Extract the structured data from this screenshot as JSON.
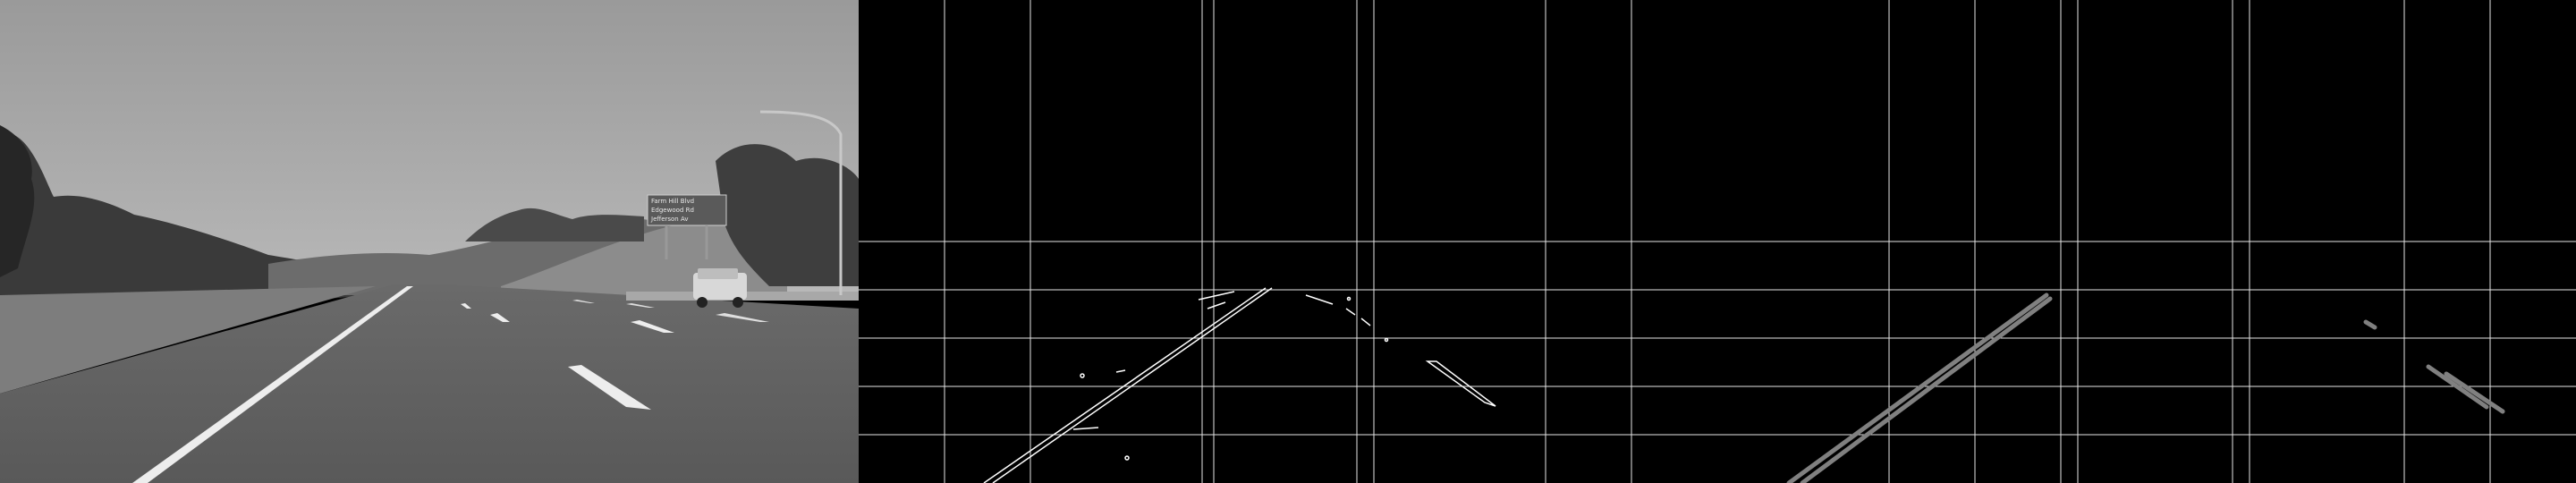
{
  "panels": [
    {
      "name": "grayscale-road-photo"
    },
    {
      "name": "canny-edge-image"
    },
    {
      "name": "hough-line-segments-image"
    }
  ],
  "highway_sign": {
    "line1": "Farm Hill Blvd",
    "line2": "Edgewood Rd",
    "line3": "Jefferson Av"
  }
}
